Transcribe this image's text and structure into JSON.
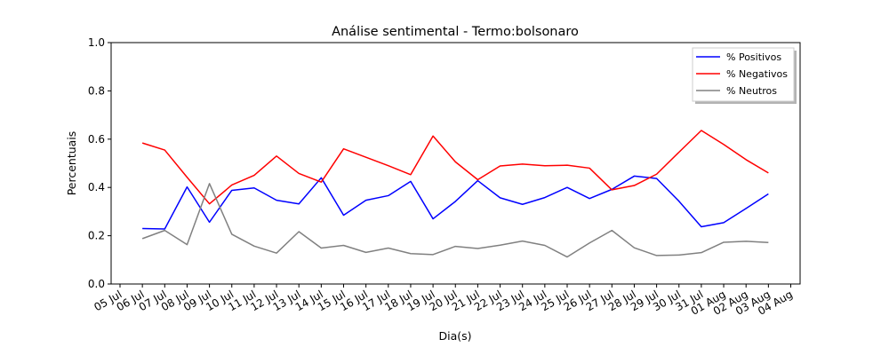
{
  "chart_data": {
    "type": "line",
    "title": "Análise sentimental - Termo:bolsonaro",
    "xlabel": "Dia(s)",
    "ylabel": "Percentuais",
    "ylim": [
      0,
      1
    ],
    "yticks": [
      "0.0",
      "0.2",
      "0.4",
      "0.6",
      "0.8",
      "1.0"
    ],
    "grid": false,
    "legend_position": "top-right",
    "x_tick_labels": [
      "05 Jul",
      "06 Jul",
      "07 Jul",
      "08 Jul",
      "09 Jul",
      "10 Jul",
      "11 Jul",
      "12 Jul",
      "13 Jul",
      "14 Jul",
      "15 Jul",
      "16 Jul",
      "17 Jul",
      "18 Jul",
      "19 Jul",
      "20 Jul",
      "21 Jul",
      "22 Jul",
      "23 Jul",
      "24 Jul",
      "25 Jul",
      "26 Jul",
      "27 Jul",
      "28 Jul",
      "29 Jul",
      "30 Jul",
      "31 Jul",
      "01 Aug",
      "02 Aug",
      "03 Aug",
      "04 Aug"
    ],
    "x": [
      "06 Jul",
      "07 Jul",
      "08 Jul",
      "09 Jul",
      "10 Jul",
      "11 Jul",
      "12 Jul",
      "13 Jul",
      "14 Jul",
      "15 Jul",
      "16 Jul",
      "17 Jul",
      "18 Jul",
      "19 Jul",
      "20 Jul",
      "21 Jul",
      "22 Jul",
      "23 Jul",
      "24 Jul",
      "25 Jul",
      "26 Jul",
      "27 Jul",
      "28 Jul",
      "29 Jul",
      "30 Jul",
      "31 Jul",
      "01 Aug",
      "02 Aug",
      "03 Aug"
    ],
    "series": [
      {
        "name": "% Positivos",
        "color": "#0000ff",
        "values": [
          0.23,
          0.228,
          0.402,
          0.256,
          0.388,
          0.398,
          0.347,
          0.332,
          0.44,
          0.285,
          0.347,
          0.366,
          0.425,
          0.27,
          0.342,
          0.428,
          0.357,
          0.33,
          0.358,
          0.4,
          0.354,
          0.392,
          0.447,
          0.437,
          0.343,
          0.237,
          0.254,
          0.313,
          0.373
        ]
      },
      {
        "name": "% Negativos",
        "color": "#ff0000",
        "values": [
          0.584,
          0.555,
          0.442,
          0.332,
          0.41,
          0.45,
          0.53,
          0.458,
          0.422,
          0.56,
          0.525,
          0.49,
          0.453,
          0.613,
          0.506,
          0.432,
          0.489,
          0.497,
          0.49,
          0.492,
          0.48,
          0.39,
          0.408,
          0.455,
          0.546,
          0.636,
          0.578,
          0.515,
          0.46
        ]
      },
      {
        "name": "% Neutros",
        "color": "#808080",
        "values": [
          0.188,
          0.222,
          0.163,
          0.416,
          0.206,
          0.157,
          0.128,
          0.217,
          0.149,
          0.16,
          0.131,
          0.149,
          0.126,
          0.122,
          0.156,
          0.147,
          0.161,
          0.178,
          0.16,
          0.112,
          0.17,
          0.222,
          0.15,
          0.118,
          0.12,
          0.13,
          0.173,
          0.177,
          0.172
        ]
      }
    ]
  }
}
